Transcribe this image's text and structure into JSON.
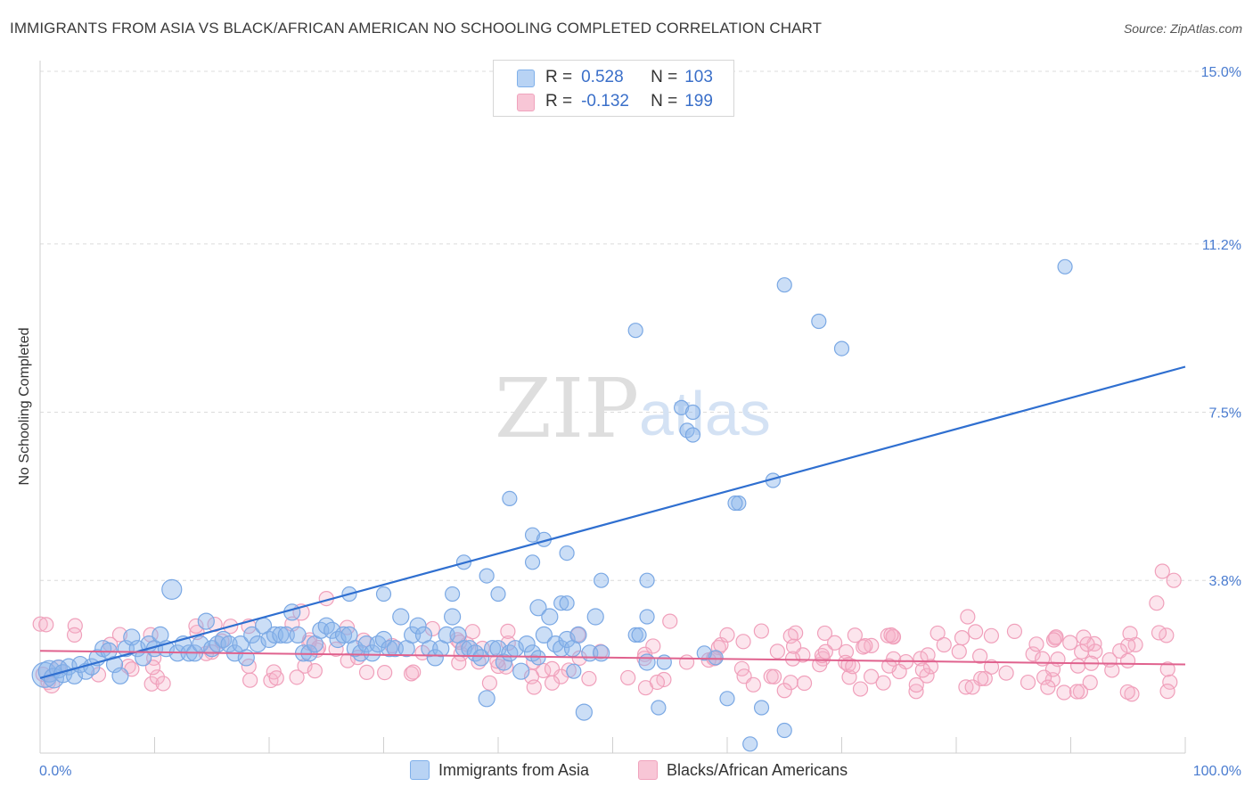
{
  "title": "IMMIGRANTS FROM ASIA VS BLACK/AFRICAN AMERICAN NO SCHOOLING COMPLETED CORRELATION CHART",
  "source": "Source: ZipAtlas.com",
  "watermark": {
    "zip": "ZIP",
    "atlas": "atlas"
  },
  "legend": {
    "r_label": "R =",
    "n_label": "N =",
    "rows": [
      {
        "r": "0.528",
        "n": "103",
        "color": "#7fb0ea",
        "fill": "#b8d3f4"
      },
      {
        "r": "-0.132",
        "n": "199",
        "color": "#f0a3bd",
        "fill": "#f8c6d6"
      }
    ]
  },
  "bottom_legend": [
    {
      "label": "Immigrants from Asia",
      "color": "#7fb0ea",
      "fill": "#b8d3f4"
    },
    {
      "label": "Blacks/African Americans",
      "color": "#f0a3bd",
      "fill": "#f8c6d6"
    }
  ],
  "chart_data": {
    "type": "scatter",
    "title": "IMMIGRANTS FROM ASIA VS BLACK/AFRICAN AMERICAN NO SCHOOLING COMPLETED CORRELATION CHART",
    "xlabel": "",
    "ylabel": "No Schooling Completed",
    "xlim": [
      0,
      100
    ],
    "ylim": [
      0,
      15.0
    ],
    "x_tick_labels": [
      "0.0%",
      "100.0%"
    ],
    "y_ticks": [
      3.8,
      7.5,
      11.2,
      15.0
    ],
    "y_tick_labels": [
      "3.8%",
      "7.5%",
      "11.2%",
      "15.0%"
    ],
    "grid": "horizontal dashed",
    "legend_placement": "top-center",
    "series": [
      {
        "name": "Immigrants from Asia",
        "color": "#6fa3e6",
        "trend": {
          "x": [
            0,
            100
          ],
          "y": [
            1.65,
            8.5
          ]
        },
        "points": [
          [
            0.4,
            1.72,
            14
          ],
          [
            0.8,
            1.8,
            12
          ],
          [
            1.2,
            1.65,
            11
          ],
          [
            1.6,
            1.85,
            10
          ],
          [
            2,
            1.75,
            10
          ],
          [
            2.5,
            1.9,
            9
          ],
          [
            3,
            1.7,
            9
          ],
          [
            3.5,
            1.95,
            9
          ],
          [
            4,
            1.8,
            9
          ],
          [
            4.5,
            1.9,
            9
          ],
          [
            5,
            2.1,
            9
          ],
          [
            5.5,
            2.3,
            9
          ],
          [
            6,
            2.25,
            9
          ],
          [
            6.5,
            1.95,
            9
          ],
          [
            7,
            1.7,
            9
          ],
          [
            7.5,
            2.3,
            9
          ],
          [
            8,
            2.55,
            9
          ],
          [
            8.5,
            2.3,
            9
          ],
          [
            9,
            2.1,
            9
          ],
          [
            9.5,
            2.4,
            9
          ],
          [
            10,
            2.3,
            9
          ],
          [
            10.5,
            2.6,
            9
          ],
          [
            11,
            2.3,
            9
          ],
          [
            11.5,
            3.6,
            11
          ],
          [
            12,
            2.2,
            9
          ],
          [
            12.5,
            2.4,
            9
          ],
          [
            13,
            2.2,
            9
          ],
          [
            13.5,
            2.2,
            9
          ],
          [
            14,
            2.4,
            9
          ],
          [
            14.5,
            2.9,
            9
          ],
          [
            15,
            2.3,
            9
          ],
          [
            15.5,
            2.4,
            9
          ],
          [
            16,
            2.5,
            9
          ],
          [
            16.5,
            2.4,
            9
          ],
          [
            17,
            2.2,
            9
          ],
          [
            17.5,
            2.4,
            9
          ],
          [
            18,
            2.1,
            9
          ],
          [
            18.5,
            2.6,
            9
          ],
          [
            19,
            2.4,
            9
          ],
          [
            19.5,
            2.8,
            9
          ],
          [
            20,
            2.5,
            9
          ],
          [
            20.5,
            2.6,
            9
          ],
          [
            21,
            2.6,
            9
          ],
          [
            21.5,
            2.6,
            9
          ],
          [
            22,
            3.1,
            9
          ],
          [
            22.5,
            2.6,
            9
          ],
          [
            23,
            2.2,
            9
          ],
          [
            23.5,
            2.2,
            9
          ],
          [
            24,
            2.4,
            9
          ],
          [
            24.5,
            2.7,
            9
          ],
          [
            25,
            2.8,
            9
          ],
          [
            25.5,
            2.7,
            9
          ],
          [
            26,
            2.5,
            9
          ],
          [
            26.5,
            2.6,
            9
          ],
          [
            27,
            2.6,
            9
          ],
          [
            27.5,
            2.3,
            9
          ],
          [
            28,
            2.2,
            9
          ],
          [
            28.5,
            2.4,
            9
          ],
          [
            29,
            2.2,
            9
          ],
          [
            29.5,
            2.4,
            9
          ],
          [
            30,
            2.5,
            9
          ],
          [
            30.5,
            2.3,
            9
          ],
          [
            31,
            2.3,
            9
          ],
          [
            31.5,
            3.0,
            9
          ],
          [
            32,
            2.3,
            9
          ],
          [
            32.5,
            2.6,
            9
          ],
          [
            33,
            2.8,
            9
          ],
          [
            33.5,
            2.6,
            9
          ],
          [
            34,
            2.3,
            9
          ],
          [
            34.5,
            2.1,
            9
          ],
          [
            35,
            2.3,
            9
          ],
          [
            35.5,
            2.6,
            9
          ],
          [
            36,
            3.0,
            9
          ],
          [
            36.5,
            2.6,
            9
          ],
          [
            37,
            2.3,
            9
          ],
          [
            37.5,
            2.3,
            9
          ],
          [
            38,
            2.2,
            9
          ],
          [
            38.5,
            2.1,
            9
          ],
          [
            39,
            1.2,
            9
          ],
          [
            39.5,
            2.3,
            9
          ],
          [
            40,
            2.3,
            9
          ],
          [
            40.5,
            2.0,
            9
          ],
          [
            41,
            2.2,
            9
          ],
          [
            41.5,
            2.3,
            9
          ],
          [
            42,
            1.8,
            9
          ],
          [
            42.5,
            2.4,
            9
          ],
          [
            43,
            2.2,
            9
          ],
          [
            43.5,
            3.2,
            9
          ],
          [
            44,
            2.6,
            9
          ],
          [
            44.5,
            3.0,
            9
          ],
          [
            45,
            2.4,
            9
          ],
          [
            45.5,
            2.3,
            9
          ],
          [
            46,
            2.5,
            9
          ],
          [
            46.5,
            2.3,
            9
          ],
          [
            47,
            2.6,
            9
          ],
          [
            47.5,
            0.9,
            9
          ],
          [
            48,
            2.2,
            9
          ],
          [
            48.5,
            3.0,
            9
          ],
          [
            49,
            2.2,
            9
          ],
          [
            53,
            2.0,
            9
          ]
        ]
      },
      {
        "name": "Blacks/African Americans",
        "color": "#f09ab8",
        "trend": {
          "x": [
            0,
            100
          ],
          "y": [
            2.25,
            1.95
          ]
        },
        "points": []
      }
    ]
  }
}
